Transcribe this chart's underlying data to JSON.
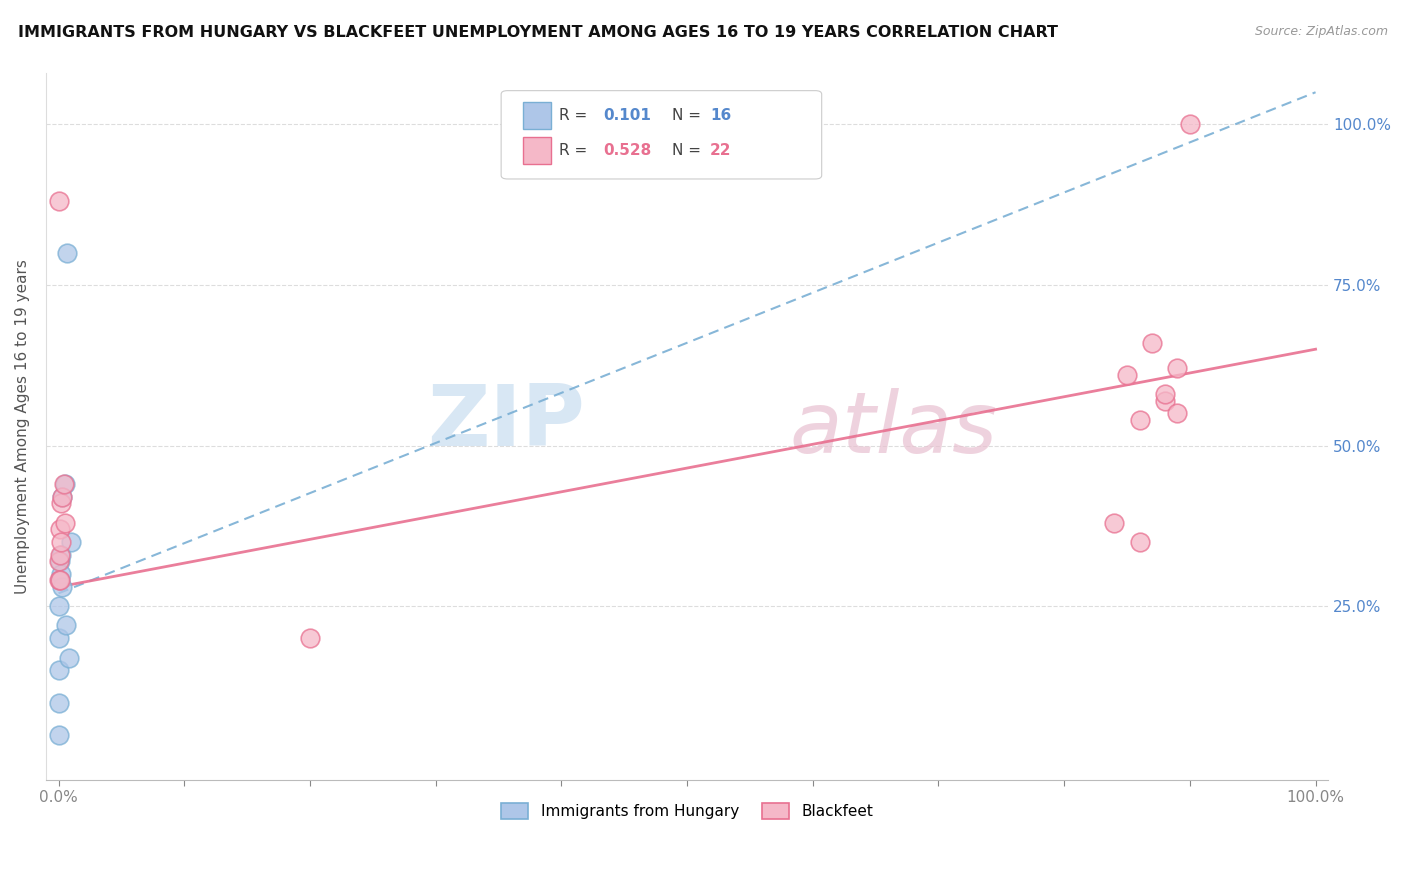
{
  "title": "IMMIGRANTS FROM HUNGARY VS BLACKFEET UNEMPLOYMENT AMONG AGES 16 TO 19 YEARS CORRELATION CHART",
  "source": "Source: ZipAtlas.com",
  "ylabel": "Unemployment Among Ages 16 to 19 years",
  "series1_color": "#aec6e8",
  "series2_color": "#f5b8c8",
  "series1_edge": "#7aafd4",
  "series2_edge": "#e87090",
  "line1_color": "#7aafd4",
  "line2_color": "#e87090",
  "watermark": "ZIPatlas",
  "watermark_color_zip": "#b8cfe8",
  "watermark_color_atlas": "#c8a0b8",
  "series1_label": "Immigrants from Hungary",
  "series2_label": "Blackfeet",
  "right_axis_color": "#5588cc",
  "legend_r1_color": "#5588cc",
  "legend_r2_color": "#e87090",
  "blue_x": [
    0.0,
    0.0,
    0.0,
    0.0,
    0.0,
    0.001,
    0.001,
    0.002,
    0.002,
    0.003,
    0.003,
    0.005,
    0.006,
    0.007,
    0.008,
    0.01
  ],
  "blue_y": [
    0.05,
    0.1,
    0.15,
    0.2,
    0.25,
    0.29,
    0.32,
    0.3,
    0.33,
    0.28,
    0.42,
    0.44,
    0.22,
    0.8,
    0.17,
    0.35
  ],
  "pink_x": [
    0.0,
    0.0,
    0.0,
    0.001,
    0.001,
    0.001,
    0.002,
    0.002,
    0.003,
    0.004,
    0.005,
    0.85,
    0.86,
    0.87,
    0.88,
    0.89,
    0.89,
    0.9,
    0.86,
    0.84,
    0.2,
    0.88
  ],
  "pink_y": [
    0.29,
    0.32,
    0.88,
    0.29,
    0.33,
    0.37,
    0.35,
    0.41,
    0.42,
    0.44,
    0.38,
    0.61,
    0.54,
    0.66,
    0.57,
    0.62,
    0.55,
    1.0,
    0.35,
    0.38,
    0.2,
    0.58
  ]
}
